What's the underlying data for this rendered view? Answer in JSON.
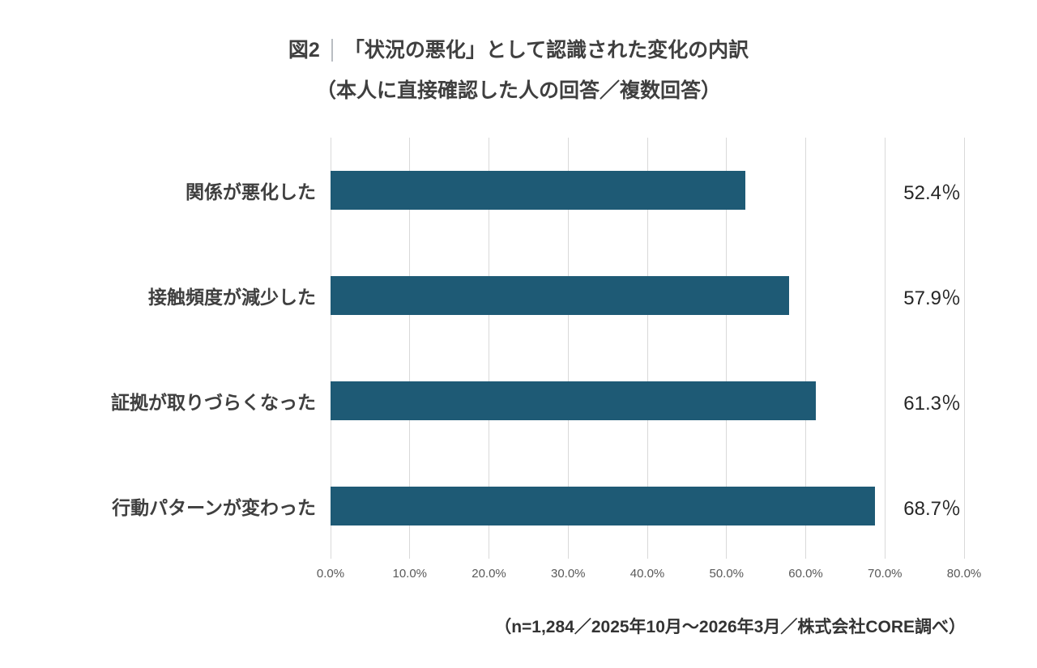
{
  "title": {
    "fig_label": "図2",
    "main": "「状況の悪化」として認識された変化の内訳",
    "sub": "（本人に直接確認した人の回答／複数回答）"
  },
  "footer": {
    "note": "（n=1,284／2025年10月～2026年3月／株式会社CORE調べ）"
  },
  "colors": {
    "bar": "#1e5a75",
    "grid": "#d9d9d9",
    "title_text": "#3f3f3f",
    "tick_text": "#595959"
  },
  "chart_data": {
    "type": "bar",
    "orientation": "horizontal",
    "title": "図2｜「状況の悪化」として認識された変化の内訳（本人に直接確認した人の回答／複数回答）",
    "categories": [
      "関係が悪化した",
      "接触頻度が減少した",
      "証拠が取りづらくなった",
      "行動パターンが変わった"
    ],
    "values": [
      52.4,
      57.9,
      61.3,
      68.7
    ],
    "value_labels": [
      "52.4％",
      "57.9％",
      "61.3％",
      "68.7％"
    ],
    "x_ticks": [
      "0.0%",
      "10.0%",
      "20.0%",
      "30.0%",
      "40.0%",
      "50.0%",
      "60.0%",
      "70.0%",
      "80.0%"
    ],
    "xlim": [
      0,
      80
    ],
    "grid": true,
    "legend": false,
    "xlabel": "",
    "ylabel": "",
    "source_note": "（n=1,284／2025年10月～2026年3月／株式会社CORE調べ）"
  }
}
